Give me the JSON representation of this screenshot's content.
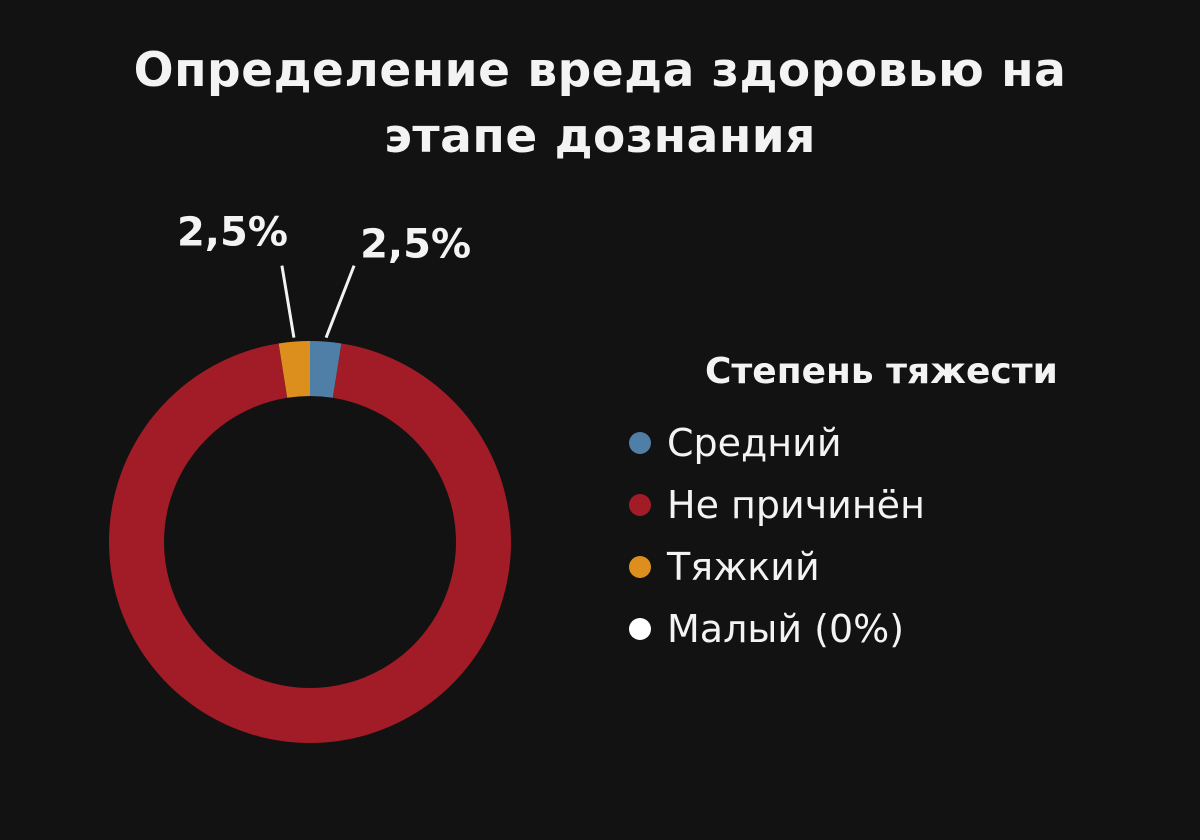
{
  "chart_data": {
    "type": "pie",
    "title_lines": [
      "Определение вреда здоровью на",
      "этапе дознания"
    ],
    "legend_title": "Степень тяжести",
    "legend_placement": "right",
    "slices": [
      {
        "label": "Средний",
        "value": 2.5,
        "display": "2,5%",
        "color": "#4f7fa6"
      },
      {
        "label": "Не причинён",
        "value": 95,
        "display": "",
        "color": "#a11c27"
      },
      {
        "label": "Тяжкий",
        "value": 2.5,
        "display": "2,5%",
        "color": "#dd8f1d"
      },
      {
        "label": "Малый (0%)",
        "value": 0,
        "display": "",
        "color": "#ffffff"
      }
    ]
  }
}
